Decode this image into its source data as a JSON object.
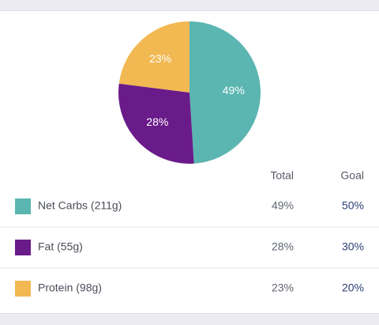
{
  "chart_data": {
    "type": "pie",
    "values": [
      49,
      28,
      23
    ],
    "value_labels": [
      "49%",
      "28%",
      "23%"
    ],
    "colors": [
      "#5bb5b0",
      "#6a1b8a",
      "#f2b852"
    ]
  },
  "table": {
    "header": [
      "Total",
      "Goal"
    ],
    "rows": [
      [
        "Net Carbs (211g)",
        "49%",
        "50%"
      ],
      [
        "Fat (55g)",
        "28%",
        "30%"
      ],
      [
        "Protein (98g)",
        "23%",
        "20%"
      ]
    ]
  }
}
